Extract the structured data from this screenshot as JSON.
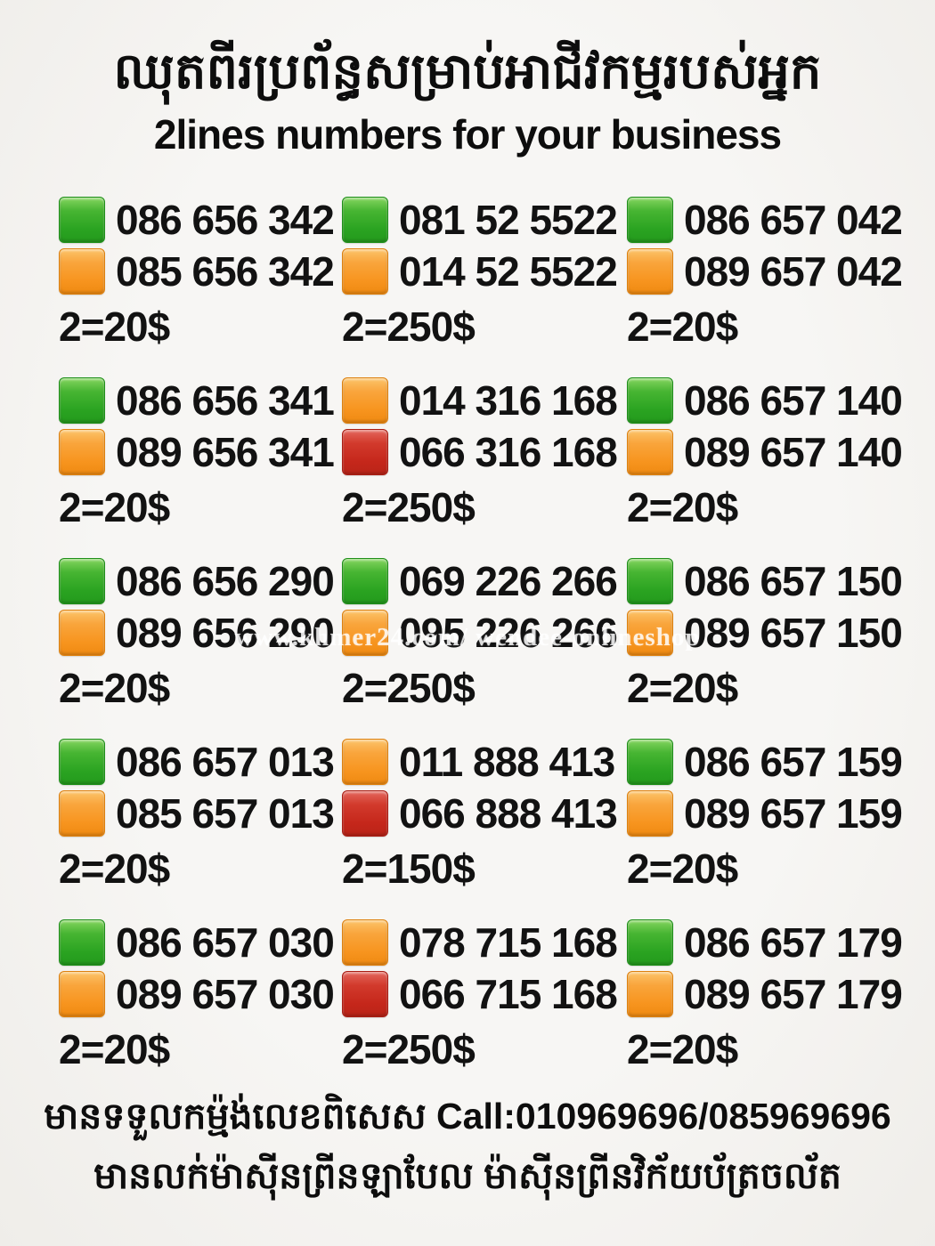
{
  "header": {
    "title_khmer": "ឈុតពីរប្រព័ន្ធសម្រាប់អាជីវកម្មរបស់អ្នក",
    "subtitle": "2lines numbers for your business"
  },
  "watermark": "www.khmer24.com/ wendee-onlineshop",
  "colors": {
    "green": "#2aa321",
    "orange": "#f7941e",
    "red": "#c5271b"
  },
  "grid": {
    "cells": [
      {
        "line1": {
          "color": "green",
          "number": "086 656 342"
        },
        "line2": {
          "color": "orange",
          "number": "085 656 342"
        },
        "price": "2=20$"
      },
      {
        "line1": {
          "color": "green",
          "number": "081 52 5522"
        },
        "line2": {
          "color": "orange",
          "number": "014 52 5522"
        },
        "price": "2=250$"
      },
      {
        "line1": {
          "color": "green",
          "number": "086 657 042"
        },
        "line2": {
          "color": "orange",
          "number": "089 657 042"
        },
        "price": "2=20$"
      },
      {
        "line1": {
          "color": "green",
          "number": "086 656 341"
        },
        "line2": {
          "color": "orange",
          "number": "089 656 341"
        },
        "price": "2=20$"
      },
      {
        "line1": {
          "color": "orange",
          "number": "014 316 168"
        },
        "line2": {
          "color": "red",
          "number": "066 316 168"
        },
        "price": "2=250$"
      },
      {
        "line1": {
          "color": "green",
          "number": "086 657 140"
        },
        "line2": {
          "color": "orange",
          "number": "089 657 140"
        },
        "price": "2=20$"
      },
      {
        "line1": {
          "color": "green",
          "number": "086 656 290"
        },
        "line2": {
          "color": "orange",
          "number": "089 656 290"
        },
        "price": "2=20$"
      },
      {
        "line1": {
          "color": "green",
          "number": "069 226 266"
        },
        "line2": {
          "color": "orange",
          "number": "095 226 266"
        },
        "price": "2=250$"
      },
      {
        "line1": {
          "color": "green",
          "number": "086 657 150"
        },
        "line2": {
          "color": "orange",
          "number": "089 657 150"
        },
        "price": "2=20$"
      },
      {
        "line1": {
          "color": "green",
          "number": "086 657 013"
        },
        "line2": {
          "color": "orange",
          "number": "085 657 013"
        },
        "price": "2=20$"
      },
      {
        "line1": {
          "color": "orange",
          "number": "011 888 413"
        },
        "line2": {
          "color": "red",
          "number": "066 888 413"
        },
        "price": "2=150$"
      },
      {
        "line1": {
          "color": "green",
          "number": "086 657 159"
        },
        "line2": {
          "color": "orange",
          "number": "089 657 159"
        },
        "price": "2=20$"
      },
      {
        "line1": {
          "color": "green",
          "number": "086 657 030"
        },
        "line2": {
          "color": "orange",
          "number": "089 657 030"
        },
        "price": "2=20$"
      },
      {
        "line1": {
          "color": "orange",
          "number": "078 715 168"
        },
        "line2": {
          "color": "red",
          "number": "066 715 168"
        },
        "price": "2=250$"
      },
      {
        "line1": {
          "color": "green",
          "number": "086 657 179"
        },
        "line2": {
          "color": "orange",
          "number": "089 657 179"
        },
        "price": "2=20$"
      }
    ]
  },
  "footer": {
    "line1": "មានទទួលកម្ម៉ង់លេខពិសេស Call:010969696/085969696",
    "line2": "មានលក់ម៉ាស៊ីនព្រីនឡាបែល ម៉ាស៊ីនព្រីនវិក័យប័ត្រចល័ត"
  }
}
